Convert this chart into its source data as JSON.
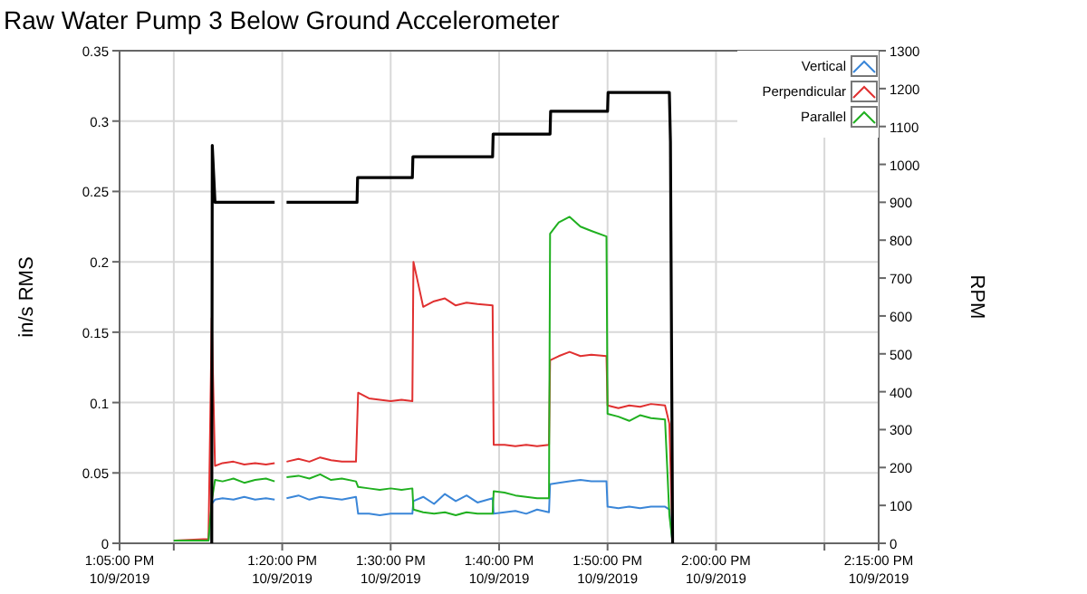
{
  "chart_data": {
    "type": "line",
    "title": "Raw Water Pump 3 Below Ground Accelerometer",
    "ylabel": "in/s RMS",
    "y2label": "RPM",
    "x": [
      "2019-10-09T13:10:00",
      "2019-10-09T13:13:12",
      "2019-10-09T13:13:30",
      "2019-10-09T13:13:48",
      "2019-10-09T13:14:30",
      "2019-10-09T13:15:30",
      "2019-10-09T13:16:30",
      "2019-10-09T13:17:30",
      "2019-10-09T13:18:30",
      "2019-10-09T13:19:18",
      "2019-10-09T13:19:48",
      "2019-10-09T13:20:24",
      "2019-10-09T13:21:30",
      "2019-10-09T13:22:30",
      "2019-10-09T13:23:30",
      "2019-10-09T13:24:30",
      "2019-10-09T13:25:30",
      "2019-10-09T13:26:48",
      "2019-10-09T13:27:00",
      "2019-10-09T13:28:00",
      "2019-10-09T13:29:00",
      "2019-10-09T13:30:00",
      "2019-10-09T13:31:00",
      "2019-10-09T13:32:00",
      "2019-10-09T13:32:06",
      "2019-10-09T13:33:00",
      "2019-10-09T13:34:00",
      "2019-10-09T13:35:00",
      "2019-10-09T13:36:00",
      "2019-10-09T13:37:00",
      "2019-10-09T13:38:00",
      "2019-10-09T13:39:24",
      "2019-10-09T13:39:30",
      "2019-10-09T13:40:30",
      "2019-10-09T13:41:30",
      "2019-10-09T13:42:30",
      "2019-10-09T13:43:30",
      "2019-10-09T13:44:36",
      "2019-10-09T13:44:42",
      "2019-10-09T13:45:30",
      "2019-10-09T13:46:30",
      "2019-10-09T13:47:30",
      "2019-10-09T13:48:30",
      "2019-10-09T13:49:54",
      "2019-10-09T13:50:00",
      "2019-10-09T13:51:00",
      "2019-10-09T13:52:00",
      "2019-10-09T13:53:00",
      "2019-10-09T13:54:00",
      "2019-10-09T13:55:18",
      "2019-10-09T13:55:42",
      "2019-10-09T13:56:00"
    ],
    "series": [
      {
        "name": "Vertical",
        "color": "#3a86d8",
        "values": [
          0.002,
          0.002,
          0.028,
          0.031,
          0.032,
          0.031,
          0.033,
          0.031,
          0.032,
          0.031,
          null,
          0.032,
          0.034,
          0.031,
          0.033,
          0.032,
          0.031,
          0.033,
          0.021,
          0.021,
          0.02,
          0.021,
          0.021,
          0.021,
          0.03,
          0.033,
          0.028,
          0.035,
          0.03,
          0.034,
          0.029,
          0.032,
          0.021,
          0.022,
          0.023,
          0.021,
          0.024,
          0.022,
          0.042,
          0.043,
          0.044,
          0.045,
          0.044,
          0.044,
          0.026,
          0.025,
          0.026,
          0.025,
          0.026,
          0.026,
          0.024,
          0
        ]
      },
      {
        "name": "Perpendicular",
        "color": "#e03030",
        "values": [
          0.002,
          0.003,
          0.16,
          0.055,
          0.057,
          0.058,
          0.056,
          0.057,
          0.056,
          0.057,
          null,
          0.058,
          0.06,
          0.058,
          0.061,
          0.059,
          0.058,
          0.058,
          0.107,
          0.103,
          0.102,
          0.101,
          0.102,
          0.101,
          0.2,
          0.168,
          0.172,
          0.174,
          0.169,
          0.171,
          0.17,
          0.169,
          0.07,
          0.07,
          0.069,
          0.07,
          0.069,
          0.07,
          0.13,
          0.133,
          0.136,
          0.133,
          0.134,
          0.133,
          0.098,
          0.096,
          0.098,
          0.097,
          0.099,
          0.098,
          0.085,
          0
        ]
      },
      {
        "name": "Parallel",
        "color": "#20b020",
        "values": [
          0.002,
          0.002,
          0.03,
          0.045,
          0.044,
          0.046,
          0.043,
          0.045,
          0.046,
          0.044,
          null,
          0.047,
          0.048,
          0.046,
          0.049,
          0.045,
          0.046,
          0.044,
          0.04,
          0.039,
          0.038,
          0.039,
          0.038,
          0.039,
          0.024,
          0.022,
          0.021,
          0.022,
          0.02,
          0.022,
          0.021,
          0.021,
          0.037,
          0.036,
          0.034,
          0.033,
          0.032,
          0.032,
          0.22,
          0.228,
          0.232,
          0.225,
          0.222,
          0.218,
          0.092,
          0.09,
          0.087,
          0.091,
          0.089,
          0.088,
          0.02,
          0
        ]
      },
      {
        "color": "#000000",
        "axis": "y2",
        "x": [
          "2019-10-09T13:13:30",
          "2019-10-09T13:13:33",
          "2019-10-09T13:13:48",
          "2019-10-09T13:19:18",
          "2019-10-09T13:19:48",
          "2019-10-09T13:20:24",
          "2019-10-09T13:26:54",
          "2019-10-09T13:26:57",
          "2019-10-09T13:32:00",
          "2019-10-09T13:32:03",
          "2019-10-09T13:39:24",
          "2019-10-09T13:39:27",
          "2019-10-09T13:44:42",
          "2019-10-09T13:44:45",
          "2019-10-09T13:50:00",
          "2019-10-09T13:50:03",
          "2019-10-09T13:55:42",
          "2019-10-09T13:55:48",
          "2019-10-09T13:56:00"
        ],
        "values": [
          0,
          1050,
          900,
          900,
          null,
          900,
          900,
          965,
          965,
          1020,
          1020,
          1080,
          1080,
          1140,
          1140,
          1190,
          1190,
          1060,
          0
        ]
      }
    ],
    "xlim": [
      "2019-10-09T13:05",
      "2019-10-09T14:15"
    ],
    "xticks": [
      {
        "value": "2019-10-09T13:05",
        "label": "1:05:00 PM\n10/9/2019"
      },
      {
        "value": "2019-10-09T13:10",
        "label": null
      },
      {
        "value": "2019-10-09T13:20",
        "label": "1:20:00 PM\n10/9/2019"
      },
      {
        "value": "2019-10-09T13:30",
        "label": "1:30:00 PM\n10/9/2019"
      },
      {
        "value": "2019-10-09T13:40",
        "label": "1:40:00 PM\n10/9/2019"
      },
      {
        "value": "2019-10-09T13:50",
        "label": "1:50:00 PM\n10/9/2019"
      },
      {
        "value": "2019-10-09T14:00",
        "label": "2:00:00 PM\n10/9/2019"
      },
      {
        "value": "2019-10-09T14:10",
        "label": null
      },
      {
        "value": "2019-10-09T14:15",
        "label": "2:15:00 PM\n10/9/2019"
      }
    ],
    "ylim": [
      0,
      0.35
    ],
    "yticks": [
      0,
      0.05,
      0.1,
      0.15,
      0.2,
      0.25,
      0.3,
      0.35
    ],
    "y2lim": [
      0,
      1300
    ],
    "y2ticks": [
      0,
      100,
      200,
      300,
      400,
      500,
      600,
      700,
      800,
      900,
      1000,
      1100,
      1200,
      1300
    ],
    "grid": true,
    "legend": "top right",
    "marker": "none",
    "line_style": "solid"
  }
}
